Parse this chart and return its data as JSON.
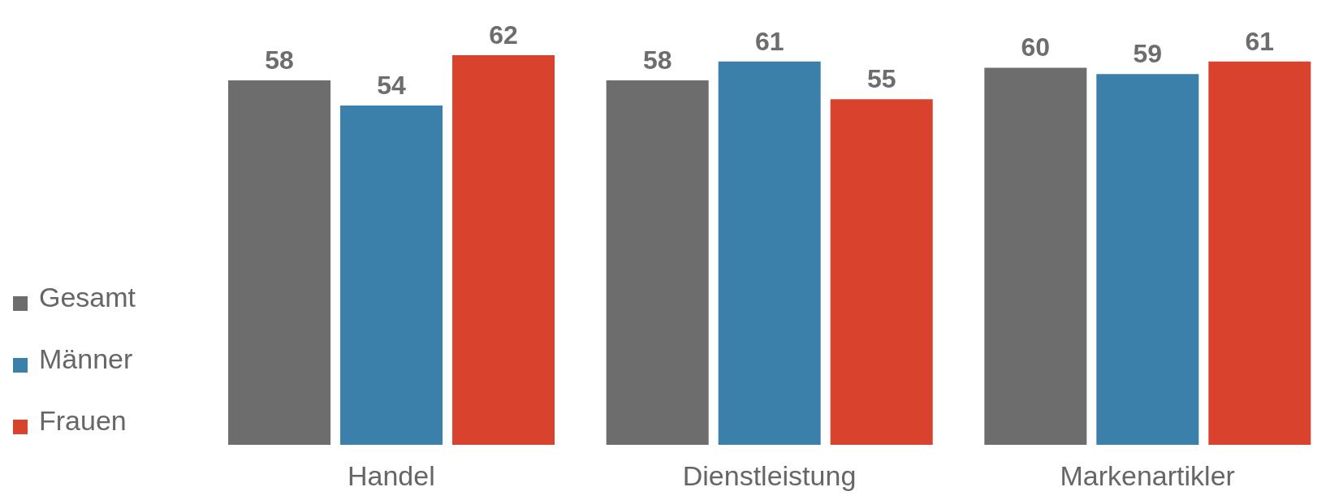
{
  "chart_data": {
    "type": "bar",
    "categories": [
      "Handel",
      "Dienstleistung",
      "Markenartikler"
    ],
    "series": [
      {
        "name": "Gesamt",
        "color": "#6d6d6d",
        "values": [
          58,
          58,
          60
        ]
      },
      {
        "name": "Männer",
        "color": "#3b7fab",
        "values": [
          54,
          61,
          59
        ]
      },
      {
        "name": "Frauen",
        "color": "#d9432e",
        "values": [
          62,
          55,
          61
        ]
      }
    ],
    "data_labels": true,
    "legend": "left",
    "grid": false
  }
}
